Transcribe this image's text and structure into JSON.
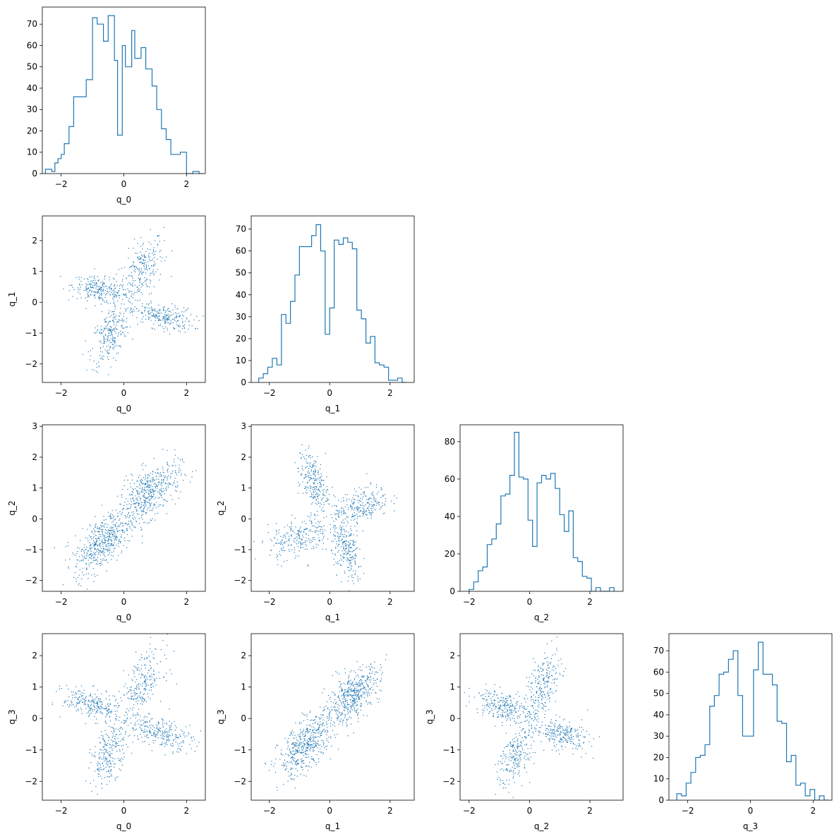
{
  "figure": {
    "type": "corner-plot",
    "variables": [
      "q_0",
      "q_1",
      "q_2",
      "q_3"
    ],
    "line_color": "#1f77b4",
    "point_color": "#1f77b4"
  },
  "chart_data": [
    {
      "type": "bar",
      "style": "step-histogram",
      "variable": "q_0",
      "xlabel": "q_0",
      "xlim": [
        -2.6,
        2.6
      ],
      "ylim": [
        0,
        78
      ],
      "xticks": [
        -2,
        0,
        2
      ],
      "yticks": [
        0,
        10,
        20,
        30,
        40,
        50,
        60,
        70
      ],
      "bin_edges": [
        -2.5,
        -2.3,
        -2.2,
        -2.1,
        -2.0,
        -1.9,
        -1.75,
        -1.6,
        -1.4,
        -1.2,
        -1.0,
        -0.85,
        -0.65,
        -0.5,
        -0.3,
        -0.2,
        -0.05,
        0.05,
        0.25,
        0.35,
        0.55,
        0.7,
        0.9,
        1.05,
        1.2,
        1.35,
        1.5,
        1.65,
        1.8,
        2.0,
        2.2,
        2.4,
        2.5
      ],
      "counts": [
        2,
        1,
        5,
        7,
        9,
        14,
        22,
        36,
        36,
        44,
        73,
        70,
        62,
        74,
        53,
        18,
        60,
        50,
        67,
        54,
        59,
        49,
        41,
        30,
        21,
        16,
        9,
        9,
        10,
        0,
        1,
        0
      ]
    },
    {
      "type": "bar",
      "style": "step-histogram",
      "variable": "q_1",
      "xlabel": "q_1",
      "xlim": [
        -2.6,
        2.8
      ],
      "ylim": [
        0,
        76
      ],
      "xticks": [
        -2,
        0,
        2
      ],
      "yticks": [
        0,
        10,
        20,
        30,
        40,
        50,
        60,
        70
      ],
      "bin_edges": [
        -2.35,
        -2.2,
        -2.05,
        -1.9,
        -1.75,
        -1.6,
        -1.45,
        -1.3,
        -1.15,
        -1.0,
        -0.8,
        -0.6,
        -0.45,
        -0.3,
        -0.15,
        0.0,
        0.15,
        0.3,
        0.45,
        0.6,
        0.75,
        0.9,
        1.05,
        1.2,
        1.35,
        1.5,
        1.65,
        1.8,
        1.95,
        2.1,
        2.25,
        2.4,
        2.55
      ],
      "counts": [
        2,
        4,
        7,
        11,
        8,
        31,
        27,
        37,
        49,
        62,
        62,
        67,
        72,
        60,
        22,
        34,
        65,
        63,
        66,
        64,
        61,
        33,
        29,
        18,
        21,
        9,
        8,
        7,
        1,
        1,
        2,
        0
      ]
    },
    {
      "type": "bar",
      "style": "step-histogram",
      "variable": "q_2",
      "xlabel": "q_2",
      "xlim": [
        -2.3,
        3.1
      ],
      "ylim": [
        0,
        89
      ],
      "xticks": [
        -2,
        0,
        2
      ],
      "yticks": [
        0,
        20,
        40,
        60,
        80
      ],
      "bin_edges": [
        -2.0,
        -1.85,
        -1.7,
        -1.55,
        -1.4,
        -1.25,
        -1.1,
        -0.95,
        -0.8,
        -0.65,
        -0.5,
        -0.35,
        -0.2,
        -0.05,
        0.1,
        0.25,
        0.4,
        0.55,
        0.7,
        0.85,
        1.0,
        1.15,
        1.3,
        1.45,
        1.6,
        1.75,
        1.9,
        2.05,
        2.2,
        2.35,
        2.5,
        2.65,
        2.8
      ],
      "counts": [
        1,
        5,
        11,
        13,
        25,
        28,
        36,
        51,
        52,
        62,
        85,
        61,
        60,
        38,
        24,
        58,
        62,
        60,
        63,
        55,
        41,
        32,
        43,
        18,
        16,
        8,
        7,
        0,
        2,
        0,
        0,
        2
      ]
    },
    {
      "type": "bar",
      "style": "step-histogram",
      "variable": "q_3",
      "xlabel": "q_3",
      "xlim": [
        -2.6,
        2.6
      ],
      "ylim": [
        0,
        78
      ],
      "xticks": [
        -2,
        0,
        2
      ],
      "yticks": [
        0,
        10,
        20,
        30,
        40,
        50,
        60,
        70
      ],
      "bin_edges": [
        -2.35,
        -2.2,
        -2.05,
        -1.9,
        -1.75,
        -1.6,
        -1.45,
        -1.3,
        -1.15,
        -1.0,
        -0.85,
        -0.7,
        -0.55,
        -0.4,
        -0.25,
        -0.1,
        0.1,
        0.25,
        0.4,
        0.55,
        0.7,
        0.85,
        1.0,
        1.15,
        1.3,
        1.45,
        1.6,
        1.75,
        1.9,
        2.05,
        2.2,
        2.35,
        2.5
      ],
      "counts": [
        3,
        2,
        8,
        13,
        20,
        21,
        26,
        44,
        49,
        59,
        60,
        66,
        70,
        49,
        30,
        30,
        61,
        74,
        59,
        59,
        54,
        37,
        36,
        18,
        21,
        7,
        8,
        2,
        5,
        0,
        2,
        0
      ]
    },
    {
      "type": "scatter",
      "xlabel": "q_0",
      "ylabel": "q_1",
      "xlim": [
        -2.6,
        2.6
      ],
      "ylim": [
        -2.6,
        2.8
      ],
      "xticks": [
        -2,
        0,
        2
      ],
      "yticks": [
        -2,
        -1,
        0,
        1,
        2
      ],
      "point_count": 1000,
      "clusters": [
        {
          "center": [
            0.55,
            1.05
          ],
          "spread": [
            0.35,
            0.55
          ],
          "corr": 0.5,
          "n": 250
        },
        {
          "center": [
            -0.75,
            0.4
          ],
          "spread": [
            0.45,
            0.22
          ],
          "corr": -0.4,
          "n": 250
        },
        {
          "center": [
            -0.45,
            -1.05
          ],
          "spread": [
            0.3,
            0.5
          ],
          "corr": 0.5,
          "n": 250
        },
        {
          "center": [
            1.2,
            -0.45
          ],
          "spread": [
            0.5,
            0.22
          ],
          "corr": -0.4,
          "n": 250
        }
      ]
    },
    {
      "type": "scatter",
      "xlabel": "q_0",
      "ylabel": "q_2",
      "xlim": [
        -2.6,
        2.6
      ],
      "ylim": [
        -2.35,
        3.05
      ],
      "xticks": [
        -2,
        0,
        2
      ],
      "yticks": [
        -2,
        -1,
        0,
        1,
        2,
        3
      ],
      "point_count": 1000,
      "clusters": [
        {
          "center": [
            0.8,
            0.85
          ],
          "spread": [
            0.5,
            0.5
          ],
          "corr": 0.6,
          "n": 500
        },
        {
          "center": [
            -0.7,
            -0.75
          ],
          "spread": [
            0.45,
            0.5
          ],
          "corr": 0.6,
          "n": 500
        }
      ]
    },
    {
      "type": "scatter",
      "xlabel": "q_1",
      "ylabel": "q_2",
      "xlim": [
        -2.6,
        2.8
      ],
      "ylim": [
        -2.35,
        3.05
      ],
      "xticks": [
        -2,
        0,
        2
      ],
      "yticks": [
        -2,
        -1,
        0,
        1,
        2,
        3
      ],
      "point_count": 1000,
      "clusters": [
        {
          "center": [
            -0.55,
            1.2
          ],
          "spread": [
            0.25,
            0.5
          ],
          "corr": -0.4,
          "n": 250
        },
        {
          "center": [
            1.05,
            0.45
          ],
          "spread": [
            0.45,
            0.3
          ],
          "corr": 0.4,
          "n": 250
        },
        {
          "center": [
            -1.05,
            -0.6
          ],
          "spread": [
            0.5,
            0.35
          ],
          "corr": 0.4,
          "n": 250
        },
        {
          "center": [
            0.55,
            -1.0
          ],
          "spread": [
            0.25,
            0.5
          ],
          "corr": -0.4,
          "n": 250
        }
      ]
    },
    {
      "type": "scatter",
      "xlabel": "q_0",
      "ylabel": "q_3",
      "xlim": [
        -2.6,
        2.6
      ],
      "ylim": [
        -2.6,
        2.7
      ],
      "xticks": [
        -2,
        0,
        2
      ],
      "yticks": [
        -2,
        -1,
        0,
        1,
        2
      ],
      "point_count": 1000,
      "clusters": [
        {
          "center": [
            0.55,
            1.05
          ],
          "spread": [
            0.35,
            0.55
          ],
          "corr": 0.5,
          "n": 250
        },
        {
          "center": [
            -1.05,
            0.45
          ],
          "spread": [
            0.45,
            0.25
          ],
          "corr": -0.4,
          "n": 250
        },
        {
          "center": [
            -0.45,
            -1.05
          ],
          "spread": [
            0.3,
            0.5
          ],
          "corr": 0.5,
          "n": 250
        },
        {
          "center": [
            1.2,
            -0.45
          ],
          "spread": [
            0.5,
            0.25
          ],
          "corr": -0.4,
          "n": 250
        }
      ]
    },
    {
      "type": "scatter",
      "xlabel": "q_1",
      "ylabel": "q_3",
      "xlim": [
        -2.6,
        2.8
      ],
      "ylim": [
        -2.6,
        2.7
      ],
      "xticks": [
        -2,
        0,
        2
      ],
      "yticks": [
        -2,
        -1,
        0,
        1,
        2
      ],
      "point_count": 1000,
      "clusters": [
        {
          "center": [
            0.75,
            0.75
          ],
          "spread": [
            0.45,
            0.45
          ],
          "corr": 0.6,
          "n": 500
        },
        {
          "center": [
            -0.8,
            -0.85
          ],
          "spread": [
            0.45,
            0.5
          ],
          "corr": 0.6,
          "n": 500
        }
      ]
    },
    {
      "type": "scatter",
      "xlabel": "q_2",
      "ylabel": "q_3",
      "xlim": [
        -2.3,
        3.1
      ],
      "ylim": [
        -2.6,
        2.7
      ],
      "xticks": [
        -2,
        0,
        2
      ],
      "yticks": [
        -2,
        -1,
        0,
        1,
        2
      ],
      "point_count": 1000,
      "clusters": [
        {
          "center": [
            0.45,
            1.05
          ],
          "spread": [
            0.3,
            0.55
          ],
          "corr": 0.5,
          "n": 250
        },
        {
          "center": [
            -0.95,
            0.45
          ],
          "spread": [
            0.45,
            0.25
          ],
          "corr": -0.4,
          "n": 250
        },
        {
          "center": [
            -0.45,
            -1.1
          ],
          "spread": [
            0.3,
            0.55
          ],
          "corr": 0.5,
          "n": 250
        },
        {
          "center": [
            1.05,
            -0.5
          ],
          "spread": [
            0.45,
            0.25
          ],
          "corr": -0.4,
          "n": 250
        }
      ]
    }
  ]
}
